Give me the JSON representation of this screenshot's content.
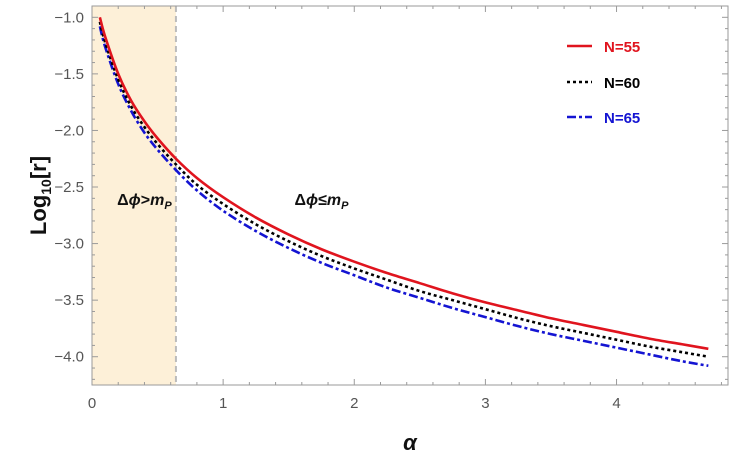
{
  "chart_data": {
    "type": "line",
    "title": "",
    "xlabel": "α",
    "ylabel_main": "Log",
    "ylabel_sub": "10",
    "ylabel_tail": "[r]",
    "xlim": [
      0.0,
      4.85
    ],
    "ylim": [
      -4.25,
      -0.9
    ],
    "xticks": [
      0,
      1,
      2,
      3,
      4
    ],
    "yticks": [
      -1.0,
      -1.5,
      -2.0,
      -2.5,
      -3.0,
      -3.5,
      -4.0
    ],
    "ytick_labels": [
      "−1.0",
      "−1.5",
      "−2.0",
      "−2.5",
      "−3.0",
      "−3.5",
      "−4.0"
    ],
    "xtick_labels": [
      "0",
      "1",
      "2",
      "3",
      "4"
    ],
    "legend_position": "top-right",
    "shaded_region": {
      "x_from": 0.0,
      "x_to": 0.64,
      "color": "#fdf0d8"
    },
    "boundary_line": {
      "x": 0.64,
      "color": "#bbbbbb",
      "style": "dashed"
    },
    "annotations": {
      "left": {
        "main": "Δ",
        "phi": "ϕ",
        "op": ">",
        "m": "m",
        "sub": "P",
        "x": 0.4,
        "y": -2.66
      },
      "right": {
        "main": "Δ",
        "phi": "ϕ",
        "op": "≤",
        "m": "m",
        "sub": "P",
        "x": 1.75,
        "y": -2.66
      }
    },
    "series": [
      {
        "name": "N=55",
        "color": "#e0141e",
        "dash": "solid",
        "width": 2.6,
        "points": [
          [
            0.06,
            -1.0
          ],
          [
            0.1,
            -1.17
          ],
          [
            0.2,
            -1.5
          ],
          [
            0.3,
            -1.74
          ],
          [
            0.4,
            -1.92
          ],
          [
            0.5,
            -2.07
          ],
          [
            0.64,
            -2.25
          ],
          [
            0.8,
            -2.42
          ],
          [
            1.0,
            -2.59
          ],
          [
            1.25,
            -2.77
          ],
          [
            1.5,
            -2.92
          ],
          [
            1.75,
            -3.05
          ],
          [
            2.0,
            -3.16
          ],
          [
            2.25,
            -3.26
          ],
          [
            2.5,
            -3.35
          ],
          [
            2.75,
            -3.44
          ],
          [
            3.0,
            -3.52
          ],
          [
            3.25,
            -3.59
          ],
          [
            3.5,
            -3.66
          ],
          [
            3.75,
            -3.72
          ],
          [
            4.0,
            -3.78
          ],
          [
            4.25,
            -3.84
          ],
          [
            4.5,
            -3.89
          ],
          [
            4.7,
            -3.93
          ]
        ]
      },
      {
        "name": "N=60",
        "color": "#000000",
        "dash": "dotted",
        "width": 2.6,
        "points": [
          [
            0.06,
            -1.04
          ],
          [
            0.1,
            -1.22
          ],
          [
            0.2,
            -1.55
          ],
          [
            0.3,
            -1.79
          ],
          [
            0.4,
            -1.97
          ],
          [
            0.5,
            -2.12
          ],
          [
            0.64,
            -2.3
          ],
          [
            0.8,
            -2.48
          ],
          [
            1.0,
            -2.65
          ],
          [
            1.25,
            -2.83
          ],
          [
            1.5,
            -2.98
          ],
          [
            1.75,
            -3.11
          ],
          [
            2.0,
            -3.22
          ],
          [
            2.25,
            -3.32
          ],
          [
            2.5,
            -3.42
          ],
          [
            2.75,
            -3.5
          ],
          [
            3.0,
            -3.58
          ],
          [
            3.25,
            -3.66
          ],
          [
            3.5,
            -3.73
          ],
          [
            3.75,
            -3.79
          ],
          [
            4.0,
            -3.85
          ],
          [
            4.25,
            -3.91
          ],
          [
            4.5,
            -3.96
          ],
          [
            4.7,
            -4.0
          ]
        ]
      },
      {
        "name": "N=65",
        "color": "#1414d2",
        "dash": "dashdot",
        "width": 2.6,
        "points": [
          [
            0.06,
            -1.08
          ],
          [
            0.1,
            -1.26
          ],
          [
            0.2,
            -1.59
          ],
          [
            0.3,
            -1.83
          ],
          [
            0.4,
            -2.02
          ],
          [
            0.5,
            -2.17
          ],
          [
            0.64,
            -2.35
          ],
          [
            0.8,
            -2.53
          ],
          [
            1.0,
            -2.71
          ],
          [
            1.25,
            -2.89
          ],
          [
            1.5,
            -3.04
          ],
          [
            1.75,
            -3.17
          ],
          [
            2.0,
            -3.28
          ],
          [
            2.25,
            -3.39
          ],
          [
            2.5,
            -3.48
          ],
          [
            2.75,
            -3.57
          ],
          [
            3.0,
            -3.65
          ],
          [
            3.25,
            -3.73
          ],
          [
            3.5,
            -3.8
          ],
          [
            3.75,
            -3.86
          ],
          [
            4.0,
            -3.92
          ],
          [
            4.25,
            -3.98
          ],
          [
            4.5,
            -4.04
          ],
          [
            4.7,
            -4.08
          ]
        ]
      }
    ]
  }
}
